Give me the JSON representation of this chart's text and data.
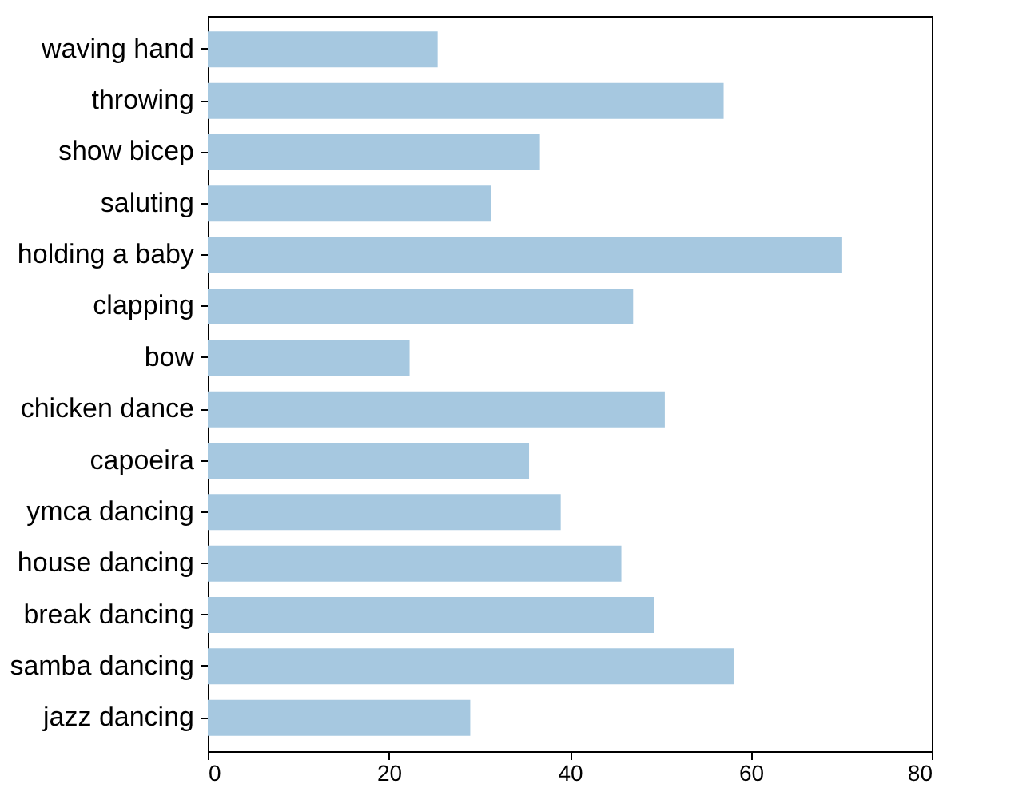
{
  "chart_data": {
    "type": "bar",
    "orientation": "horizontal",
    "categories": [
      "waving hand",
      "throwing",
      "show bicep",
      "saluting",
      "holding a baby",
      "clapping",
      "bow",
      "chicken dance",
      "capoeira",
      "ymca dancing",
      "house dancing",
      "break dancing",
      "samba dancing",
      "jazz dancing"
    ],
    "values": [
      25.4,
      57.0,
      36.7,
      31.3,
      70.1,
      47.0,
      22.3,
      50.5,
      35.5,
      39.0,
      45.7,
      49.3,
      58.1,
      29.0
    ],
    "color": "#a6c8e0",
    "xlim": [
      0,
      80
    ],
    "xticks": [
      0,
      20,
      40,
      60,
      80
    ],
    "grid": false
  }
}
